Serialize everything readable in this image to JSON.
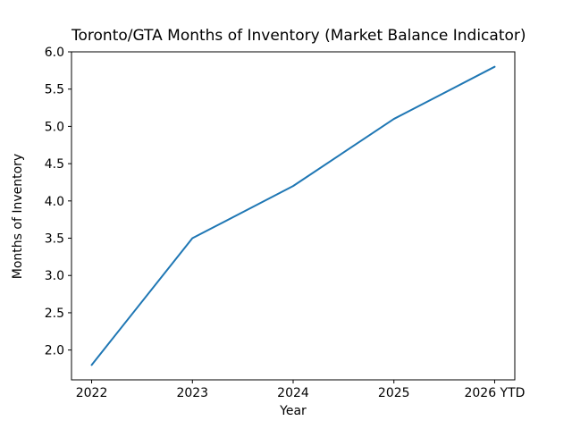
{
  "figure": {
    "background": "#ffffff"
  },
  "chart_data": {
    "type": "line",
    "title": "Toronto/GTA Months of Inventory (Market Balance Indicator)",
    "xlabel": "Year",
    "ylabel": "Months of Inventory",
    "categories": [
      "2022",
      "2023",
      "2024",
      "2025",
      "2026 YTD"
    ],
    "values": [
      1.8,
      3.5,
      4.2,
      5.1,
      5.8
    ],
    "series": [
      {
        "name": "Months of Inventory",
        "values": [
          1.8,
          3.5,
          4.2,
          5.1,
          5.8
        ]
      }
    ],
    "ytick_labels": [
      "2.0",
      "2.5",
      "3.0",
      "3.5",
      "4.0",
      "4.5",
      "5.0",
      "5.5",
      "6.0"
    ],
    "yticks": [
      2.0,
      2.5,
      3.0,
      3.5,
      4.0,
      4.5,
      5.0,
      5.5,
      6.0
    ],
    "xlim": [
      -0.2,
      4.2
    ],
    "ylim": [
      1.6,
      6.0
    ],
    "grid": false,
    "legend": null,
    "line_color": "#1f77b4",
    "axis_color": "#000000",
    "background_color": "#ffffff"
  }
}
